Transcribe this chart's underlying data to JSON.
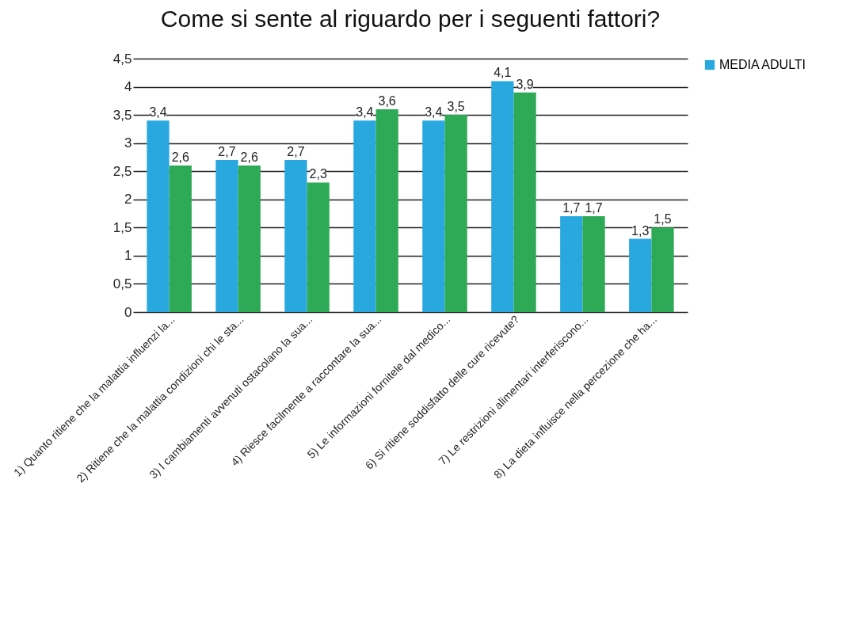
{
  "chart_data": {
    "type": "bar",
    "title": "Come si sente al riguardo per i seguenti fattori?",
    "categories": [
      "1) Quanto ritiene che la malattia influenzi la...",
      "2) Ritiene che la malattia condizioni chi le sta...",
      "3) I cambiamenti avvenuti ostacolano la sua...",
      "4) Riesce facilmente a raccontare la sua...",
      "5) Le informazioni fornitele dal medico...",
      "6) Si ritiene soddisfatto delle cure ricevute?",
      "7) Le restrizioni alimentari interferiscono...",
      "8) La dieta influisce nella percezione che ha..."
    ],
    "series": [
      {
        "name": "MEDIA ADULTI",
        "color": "#29a8e0",
        "values": [
          3.4,
          2.7,
          2.7,
          3.4,
          3.4,
          4.1,
          1.7,
          1.3
        ],
        "value_labels": [
          "3,4",
          "2,7",
          "2,7",
          "3,4",
          "3,4",
          "4,1",
          "1,7",
          "1,3"
        ]
      },
      {
        "color": "#2eaa57",
        "values": [
          2.6,
          2.6,
          2.3,
          3.6,
          3.5,
          3.9,
          1.7,
          1.5
        ],
        "value_labels": [
          "2,6",
          "2,6",
          "2,3",
          "3,6",
          "3,5",
          "3,9",
          "1,7",
          "1,5"
        ]
      }
    ],
    "ylim": [
      0,
      4.5
    ],
    "yticks": [
      0,
      {
        "value": 0.5,
        "label": "0,5"
      },
      1,
      {
        "value": 1.5,
        "label": "1,5"
      },
      2,
      {
        "value": 2.5,
        "label": "2,5"
      },
      3,
      {
        "value": 3.5,
        "label": "3,5"
      },
      4,
      {
        "value": 4.5,
        "label": "4,5"
      }
    ],
    "grid": "y",
    "legend": "right"
  }
}
